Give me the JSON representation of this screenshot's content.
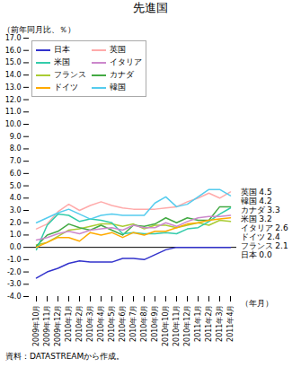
{
  "chart_data": {
    "type": "line",
    "title": "先進国",
    "y_label": "（前年同月比、％）",
    "x_label": "（年月）",
    "source": "資料：DATASTREAMから作成。",
    "categories": [
      "2009年10月",
      "2009年11月",
      "2009年12月",
      "2010年1月",
      "2010年2月",
      "2010年3月",
      "2010年4月",
      "2010年5月",
      "2010年6月",
      "2010年7月",
      "2010年8月",
      "2010年9月",
      "2010年10月",
      "2010年11月",
      "2010年12月",
      "2011年1月",
      "2011年2月",
      "2011年3月",
      "2011年4月"
    ],
    "series": [
      {
        "name": "日本",
        "color": "#3333cc",
        "values": [
          -2.5,
          -2.0,
          -1.7,
          -1.3,
          -1.1,
          -1.2,
          -1.2,
          -1.2,
          -0.9,
          -0.9,
          -1.0,
          -0.6,
          -0.2,
          0.0,
          0.0,
          0.0,
          0.0,
          0.0,
          0.0
        ]
      },
      {
        "name": "フランス",
        "color": "#aacc33",
        "values": [
          0.2,
          0.4,
          0.9,
          1.4,
          1.5,
          1.7,
          1.9,
          1.9,
          1.7,
          1.9,
          1.5,
          1.8,
          1.8,
          1.6,
          1.8,
          2.0,
          1.8,
          2.2,
          2.1
        ]
      },
      {
        "name": "英国",
        "color": "#ffaaaa",
        "values": [
          1.5,
          1.9,
          2.9,
          3.5,
          3.0,
          3.4,
          3.7,
          3.4,
          3.2,
          3.1,
          3.1,
          3.1,
          3.2,
          3.3,
          3.7,
          4.0,
          4.4,
          4.0,
          4.5
        ]
      },
      {
        "name": "カナダ",
        "color": "#44aa44",
        "values": [
          0.1,
          1.0,
          1.3,
          1.9,
          1.6,
          1.4,
          1.8,
          1.4,
          1.0,
          1.8,
          1.7,
          1.9,
          2.4,
          2.0,
          2.4,
          2.2,
          2.2,
          3.3,
          3.3
        ]
      },
      {
        "name": "米国",
        "color": "#33ccaa",
        "values": [
          -0.2,
          1.8,
          2.7,
          2.6,
          2.1,
          2.3,
          2.2,
          2.0,
          1.1,
          1.2,
          1.1,
          1.1,
          1.2,
          1.1,
          1.5,
          1.6,
          2.1,
          2.7,
          3.2
        ]
      },
      {
        "name": "ドイツ",
        "color": "#ffaa00",
        "values": [
          0.0,
          0.4,
          0.8,
          0.8,
          0.5,
          1.2,
          1.0,
          1.2,
          0.8,
          1.2,
          1.0,
          1.3,
          1.3,
          1.6,
          1.9,
          2.0,
          2.2,
          2.3,
          2.4
        ]
      },
      {
        "name": "イタリア",
        "color": "#cc88cc",
        "values": [
          0.6,
          0.8,
          1.1,
          1.3,
          1.1,
          1.4,
          1.5,
          1.6,
          1.4,
          1.8,
          1.6,
          1.6,
          2.0,
          1.7,
          2.1,
          2.4,
          2.5,
          2.5,
          2.6
        ]
      },
      {
        "name": "韓国",
        "color": "#55ccee",
        "values": [
          2.0,
          2.4,
          2.8,
          3.1,
          2.7,
          2.3,
          2.6,
          2.7,
          2.6,
          2.6,
          2.6,
          3.6,
          4.1,
          3.3,
          3.5,
          4.1,
          4.7,
          4.7,
          4.2
        ]
      }
    ],
    "legend_order": [
      "日本",
      "米国",
      "フランス",
      "ドイツ",
      "英国",
      "イタリア",
      "カナダ",
      "韓国"
    ],
    "legend": "upper left",
    "ylim": [
      -4.0,
      17.0
    ],
    "yticks": [
      {
        "value": -4.0,
        "label": "-4.0"
      },
      {
        "value": -3.0,
        "label": "-3.0"
      },
      {
        "value": -2.0,
        "label": "-2.0"
      },
      {
        "value": -1.0,
        "label": "-1.0"
      },
      {
        "value": 0.0,
        "label": "0.0"
      },
      {
        "value": 1.0,
        "label": "1.0"
      },
      {
        "value": 2.0,
        "label": "2.0"
      },
      {
        "value": 3.0,
        "label": "3.0"
      },
      {
        "value": 4.0,
        "label": "4.0"
      },
      {
        "value": 5.0,
        "label": "5.0"
      },
      {
        "value": 6.0,
        "label": "6.0"
      },
      {
        "value": 7.0,
        "label": "7.0"
      },
      {
        "value": 8.0,
        "label": "8.0"
      },
      {
        "value": 9.0,
        "label": "9.0"
      },
      {
        "value": 10.0,
        "label": "10.0"
      },
      {
        "value": 11.0,
        "label": "11.0"
      },
      {
        "value": 12.0,
        "label": "12.0"
      },
      {
        "value": 13.0,
        "label": "13.0"
      },
      {
        "value": 14.0,
        "label": "14.0"
      },
      {
        "value": 15.0,
        "label": "15.0"
      },
      {
        "value": 16.0,
        "label": "16.0"
      },
      {
        "value": 17.0,
        "label": "17.0"
      }
    ],
    "hlines": [
      0.0
    ],
    "annotations": [
      {
        "text": "英国 4.5",
        "y": 4.5
      },
      {
        "text": "韓国 4.2",
        "y": 4.2
      },
      {
        "text": "カナダ 3.3",
        "y": 3.3
      },
      {
        "text": "米国 3.2",
        "y": 3.2
      },
      {
        "text": "イタリア 2.6",
        "y": 2.6
      },
      {
        "text": "ドイツ 2.4",
        "y": 2.4
      },
      {
        "text": "フランス 2.1",
        "y": 2.1
      },
      {
        "text": "日本 0.0",
        "y": 0.0
      }
    ]
  }
}
